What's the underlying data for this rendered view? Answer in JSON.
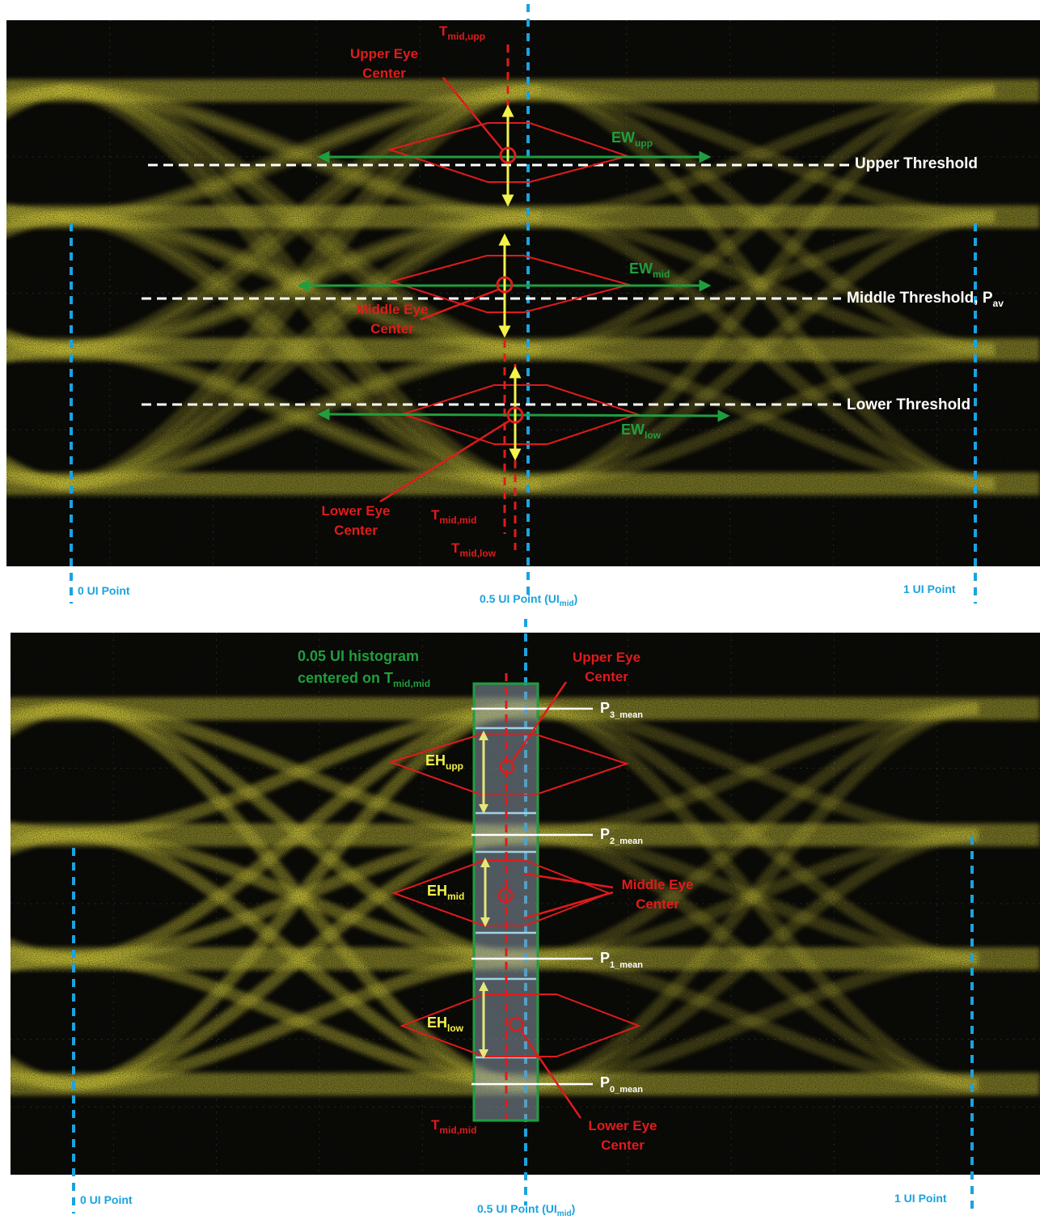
{
  "top": {
    "t_mid_upp": {
      "main": "T",
      "sub": "mid,upp"
    },
    "upper_eye_center": [
      "Upper Eye",
      "Center"
    ],
    "ew_upp": {
      "main": "EW",
      "sub": "upp"
    },
    "upper_threshold": "Upper Threshold",
    "ew_mid": {
      "main": "EW",
      "sub": "mid"
    },
    "middle_threshold": {
      "main": "Middle Threshold, P",
      "sub": "av"
    },
    "middle_eye_center": [
      "Middle Eye",
      "Center"
    ],
    "lower_threshold": "Lower Threshold",
    "ew_low": {
      "main": "EW",
      "sub": "low"
    },
    "lower_eye_center": [
      "Lower Eye",
      "Center"
    ],
    "t_mid_mid": {
      "main": "T",
      "sub": "mid,mid"
    },
    "t_mid_low": {
      "main": "T",
      "sub": "mid,low"
    },
    "ui0": "0 UI Point",
    "ui05": {
      "main": "0.5 UI Point  (UI",
      "sub": "mid",
      "end": ")"
    },
    "ui1": "1 UI Point"
  },
  "bottom": {
    "histogram_label": [
      "0.05 UI histogram",
      "centered on T"
    ],
    "histogram_sub": "mid,mid",
    "upper_eye_center": [
      "Upper Eye",
      "Center"
    ],
    "p3": {
      "main": "P",
      "sub": "3_mean"
    },
    "p2": {
      "main": "P",
      "sub": "2_mean"
    },
    "p1": {
      "main": "P",
      "sub": "1_mean"
    },
    "p0": {
      "main": "P",
      "sub": "0_mean"
    },
    "eh_upp": {
      "main": "EH",
      "sub": "upp"
    },
    "eh_mid": {
      "main": "EH",
      "sub": "mid"
    },
    "eh_low": {
      "main": "EH",
      "sub": "low"
    },
    "middle_eye_center": [
      "Middle Eye",
      "Center"
    ],
    "lower_eye_center": [
      "Lower Eye",
      "Center"
    ],
    "t_mid_mid": {
      "main": "T",
      "sub": "mid,mid"
    },
    "ui0": "0 UI Point",
    "ui05": {
      "main": "0.5 UI Point  (UI",
      "sub": "mid",
      "end": ")"
    },
    "ui1": "1 UI Point"
  },
  "colors": {
    "trace": "#c9c23a",
    "background": "#0b0b08",
    "annotation_red": "#e01b1b",
    "ew_green": "#1f9e3e",
    "eh_yellow": "#f2f24a",
    "ui_blue": "#1aa3e0",
    "threshold_white": "#ffffff"
  }
}
